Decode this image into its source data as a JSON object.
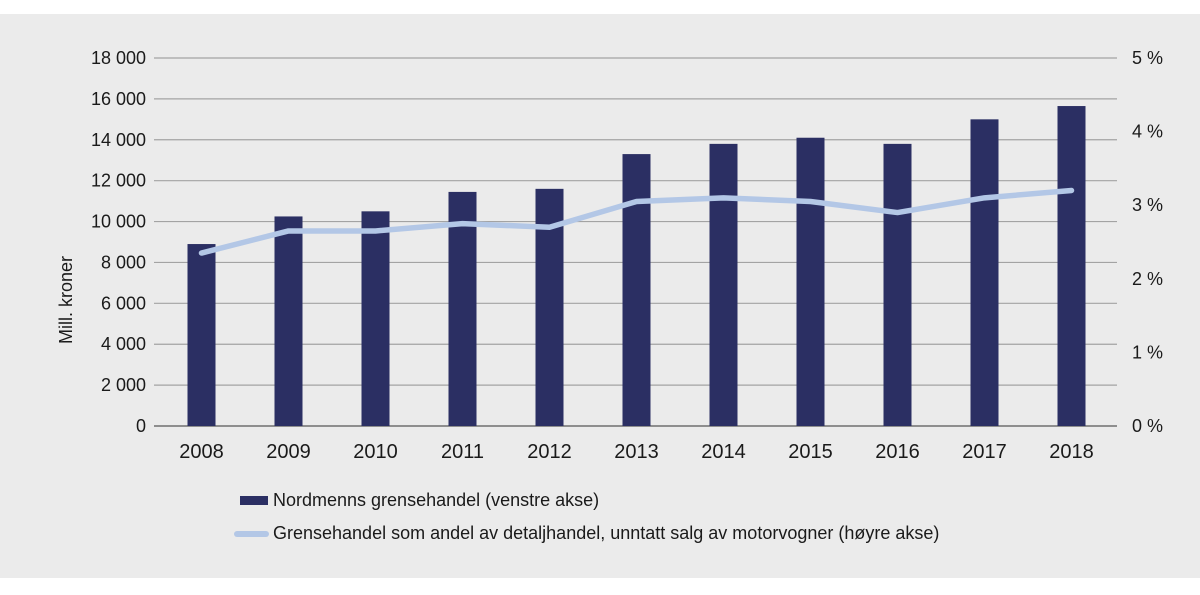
{
  "chart_data": {
    "type": "bar+line combo",
    "categories": [
      "2008",
      "2009",
      "2010",
      "2011",
      "2012",
      "2013",
      "2014",
      "2015",
      "2016",
      "2017",
      "2018"
    ],
    "series": [
      {
        "name": "Nordmenns grensehandel (venstre akse)",
        "type": "bar",
        "axis": "left",
        "color": "#2b2f63",
        "values": [
          8900,
          10250,
          10500,
          11450,
          11600,
          13300,
          13800,
          14100,
          13800,
          15000,
          15650
        ]
      },
      {
        "name": "Grensehandel som andel av detaljhandel, unntatt salg av motorvogner (høyre akse)",
        "type": "line",
        "axis": "right",
        "color": "#b3c7e6",
        "values": [
          2.35,
          2.65,
          2.65,
          2.75,
          2.7,
          3.05,
          3.1,
          3.05,
          2.9,
          3.1,
          3.2
        ]
      }
    ],
    "left_axis": {
      "title": "Mill. kroner",
      "min": 0,
      "max": 18000,
      "step": 2000,
      "tick_labels": [
        "0",
        "2 000",
        "4 000",
        "6 000",
        "8 000",
        "10 000",
        "12 000",
        "14 000",
        "16 000",
        "18 000"
      ]
    },
    "right_axis": {
      "min": 0,
      "max": 5,
      "step": 1,
      "tick_labels": [
        "0 %",
        "1 %",
        "2 %",
        "3 %",
        "4 %",
        "5 %"
      ]
    },
    "grid": true,
    "legend_position": "bottom-left",
    "colors": {
      "panel_background": "#ebebeb",
      "gridline": "#a3a3a3",
      "baseline": "#808080",
      "text": "#1a1a1a",
      "bar": "#2b2f63",
      "line": "#b3c7e6"
    }
  }
}
